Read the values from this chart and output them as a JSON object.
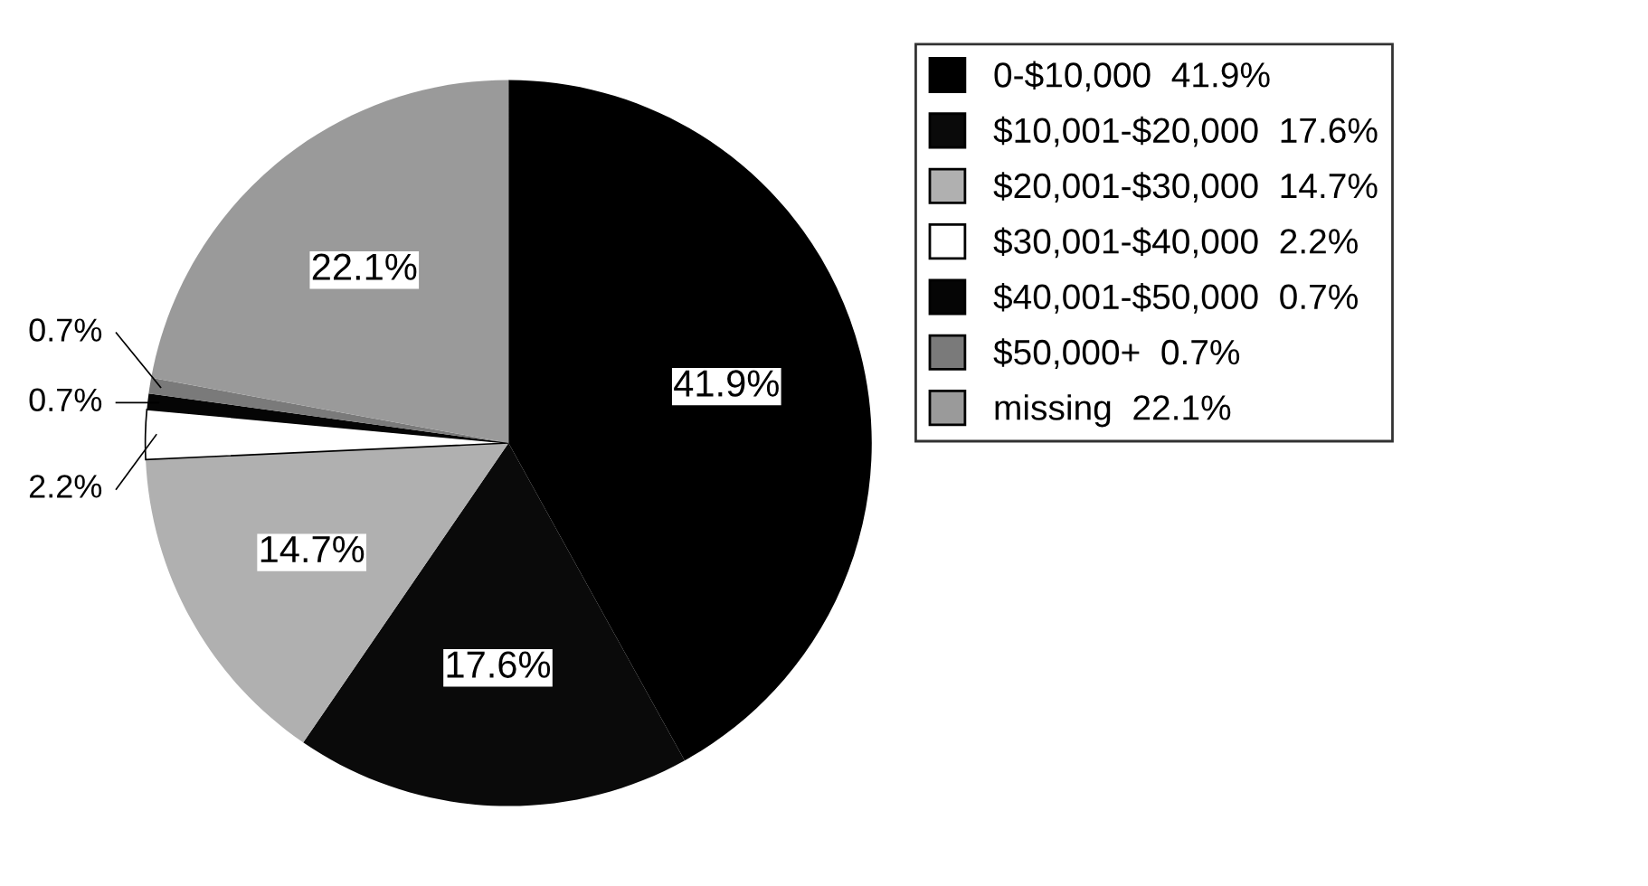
{
  "chart_data": {
    "type": "pie",
    "categories": [
      "0-$10,000",
      "$10,001-$20,000",
      "$20,001-$30,000",
      "$30,001-$40,000",
      "$40,001-$50,000",
      "$50,000+",
      "missing"
    ],
    "values": [
      41.9,
      17.6,
      14.7,
      2.2,
      0.7,
      0.7,
      22.1
    ],
    "value_labels": [
      "41.9%",
      "17.6%",
      "14.7%",
      "2.2%",
      "0.7%",
      "0.7%",
      "22.1%"
    ],
    "colors": [
      "#000000",
      "#0a0a0a",
      "#b0b0b0",
      "#ffffff",
      "#050505",
      "#7a7a7a",
      "#9a9a9a"
    ],
    "legend": "right"
  }
}
